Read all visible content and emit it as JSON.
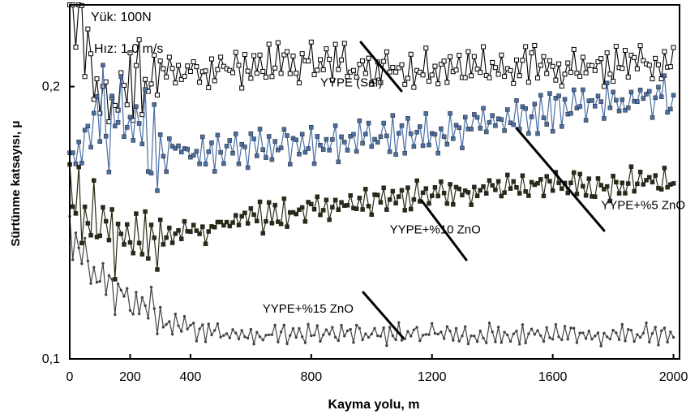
{
  "chart_data": {
    "type": "line",
    "xlabel": "Kayma yolu, m",
    "ylabel": "Sürtünme katsayısı, μ",
    "xlim": [
      0,
      2020
    ],
    "ylim": [
      0.1,
      0.23
    ],
    "x_ticks": [
      {
        "value": 0,
        "label": "0"
      },
      {
        "value": 200,
        "label": "200"
      },
      {
        "value": 400,
        "label": "400"
      },
      {
        "value": 800,
        "label": "800"
      },
      {
        "value": 1200,
        "label": "1200"
      },
      {
        "value": 1600,
        "label": "1600"
      },
      {
        "value": 2000,
        "label": "2000"
      }
    ],
    "y_ticks": [
      {
        "value": 0.1,
        "label": "0,1"
      },
      {
        "value": 0.2,
        "label": "0,2"
      }
    ],
    "info": [
      {
        "text": "Yük: 100N"
      },
      {
        "text": "Hız: 1.0 m/s"
      }
    ],
    "series": [
      {
        "name": "YYPE (Saf)",
        "marker": "hollow-square",
        "color": "#000000",
        "points": [
          [
            0,
            0.23
          ],
          [
            50,
            0.217
          ],
          [
            100,
            0.199
          ],
          [
            150,
            0.19
          ],
          [
            200,
            0.2
          ],
          [
            300,
            0.206
          ],
          [
            400,
            0.207
          ],
          [
            500,
            0.207
          ],
          [
            600,
            0.207
          ],
          [
            700,
            0.208
          ],
          [
            800,
            0.208
          ],
          [
            900,
            0.208
          ],
          [
            1000,
            0.207
          ],
          [
            1200,
            0.207
          ],
          [
            1400,
            0.208
          ],
          [
            1600,
            0.208
          ],
          [
            1800,
            0.207
          ],
          [
            2000,
            0.207
          ]
        ],
        "amplitude": 0.008
      },
      {
        "name": "YYPE+%5 ZnO",
        "marker": "filled-square",
        "color": "#4a6fa5",
        "points": [
          [
            0,
            0.165
          ],
          [
            50,
            0.18
          ],
          [
            100,
            0.19
          ],
          [
            150,
            0.185
          ],
          [
            200,
            0.181
          ],
          [
            300,
            0.176
          ],
          [
            400,
            0.176
          ],
          [
            500,
            0.177
          ],
          [
            600,
            0.177
          ],
          [
            700,
            0.178
          ],
          [
            800,
            0.179
          ],
          [
            900,
            0.18
          ],
          [
            1000,
            0.181
          ],
          [
            1200,
            0.184
          ],
          [
            1400,
            0.187
          ],
          [
            1600,
            0.19
          ],
          [
            1800,
            0.194
          ],
          [
            2000,
            0.197
          ]
        ],
        "amplitude": 0.008
      },
      {
        "name": "YYPE+%10 ZnO",
        "marker": "filled-square",
        "color": "#2b2a14",
        "points": [
          [
            0,
            0.16
          ],
          [
            50,
            0.155
          ],
          [
            100,
            0.15
          ],
          [
            150,
            0.145
          ],
          [
            200,
            0.142
          ],
          [
            300,
            0.145
          ],
          [
            400,
            0.147
          ],
          [
            500,
            0.149
          ],
          [
            600,
            0.151
          ],
          [
            700,
            0.153
          ],
          [
            800,
            0.155
          ],
          [
            900,
            0.157
          ],
          [
            1000,
            0.158
          ],
          [
            1200,
            0.16
          ],
          [
            1400,
            0.162
          ],
          [
            1600,
            0.163
          ],
          [
            1800,
            0.164
          ],
          [
            2000,
            0.165
          ]
        ],
        "amplitude": 0.006
      },
      {
        "name": "YYPE+%15 ZnO",
        "marker": "dot",
        "color": "#444444",
        "points": [
          [
            0,
            0.145
          ],
          [
            50,
            0.135
          ],
          [
            100,
            0.128
          ],
          [
            150,
            0.124
          ],
          [
            200,
            0.12
          ],
          [
            300,
            0.115
          ],
          [
            400,
            0.111
          ],
          [
            500,
            0.11
          ],
          [
            600,
            0.109
          ],
          [
            700,
            0.109
          ],
          [
            800,
            0.109
          ],
          [
            900,
            0.109
          ],
          [
            1000,
            0.109
          ],
          [
            1200,
            0.109
          ],
          [
            1400,
            0.109
          ],
          [
            1600,
            0.109
          ],
          [
            1800,
            0.109
          ],
          [
            2000,
            0.109
          ]
        ],
        "amplitude": 0.004
      }
    ],
    "annotations": [
      {
        "series": 0,
        "text": "YYPE (Saf)",
        "x": 830,
        "y": 0.2,
        "anchor": "start"
      },
      {
        "series": 1,
        "text": "YYPE+%5 ZnO",
        "x": 1760,
        "y": 0.155,
        "anchor": "start"
      },
      {
        "series": 2,
        "text": "YYPE+%10 ZnO",
        "x": 1060,
        "y": 0.146,
        "anchor": "start"
      },
      {
        "series": 3,
        "text": "YYPE+%15 ZnO",
        "x": 940,
        "y": 0.117,
        "anchor": "end"
      }
    ]
  }
}
